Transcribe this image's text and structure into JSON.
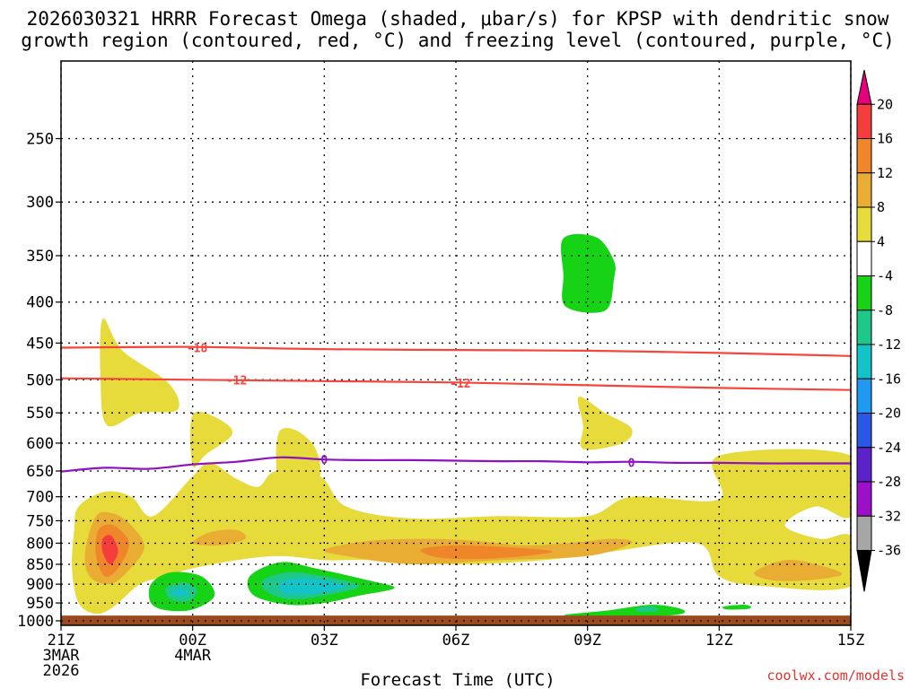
{
  "chart_data": {
    "type": "time-height cross section",
    "title_lines": [
      "2026030321 HRRR Forecast Omega (shaded, μbar/s) for KPSP with dendritic snow",
      "growth region (contoured, red, °C) and freezing level (contoured, purple, °C)"
    ],
    "xlabel": "Forecast Time (UTC)",
    "ylabel": "",
    "x_ticks": [
      {
        "hour": 0,
        "lines": [
          "21Z",
          "3MAR",
          "2026"
        ]
      },
      {
        "hour": 3,
        "lines": [
          "00Z",
          "4MAR"
        ]
      },
      {
        "hour": 6,
        "lines": [
          "03Z"
        ]
      },
      {
        "hour": 9,
        "lines": [
          "06Z"
        ]
      },
      {
        "hour": 12,
        "lines": [
          "09Z"
        ]
      },
      {
        "hour": 15,
        "lines": [
          "12Z"
        ]
      },
      {
        "hour": 18,
        "lines": [
          "15Z"
        ]
      }
    ],
    "xlim": [
      0,
      18
    ],
    "y_ticks": [
      "250",
      "300",
      "350",
      "400",
      "450",
      "500",
      "550",
      "600",
      "650",
      "700",
      "750",
      "800",
      "850",
      "900",
      "950",
      "1000"
    ],
    "ylim_hPa": [
      200,
      1013
    ],
    "yscale": "log",
    "grid": true,
    "terrain_below_hPa": 985,
    "colorbar": {
      "label_values": [
        "20",
        "16",
        "12",
        "8",
        "4",
        "-4",
        "-8",
        "-12",
        "-16",
        "-20",
        "-24",
        "-28",
        "-32",
        "-36"
      ],
      "colors": [
        "#e6007e",
        "#f63d3d",
        "#f0862a",
        "#e9ad34",
        "#e6db3b",
        "#ffffff",
        "#16d316",
        "#1ec78a",
        "#13c3c8",
        "#1e9af2",
        "#2a58e6",
        "#5a22c8",
        "#9c10c9",
        "#a6a6a6",
        "#000000"
      ]
    },
    "contours": [
      {
        "name": "dgz-minus-18",
        "label": "-18",
        "color": "#f5453d",
        "points": [
          [
            0,
            456
          ],
          [
            3,
            455
          ],
          [
            6,
            458
          ],
          [
            9,
            459
          ],
          [
            12,
            460
          ],
          [
            15,
            463
          ],
          [
            18,
            467
          ]
        ],
        "label_at": [
          3.1,
          456
        ]
      },
      {
        "name": "dgz-minus-12",
        "label": "-12",
        "color": "#f5453d",
        "points": [
          [
            0,
            498
          ],
          [
            3,
            500
          ],
          [
            6,
            502
          ],
          [
            9,
            504
          ],
          [
            12,
            508
          ],
          [
            15,
            512
          ],
          [
            18,
            515
          ]
        ],
        "label_at": [
          4.0,
          500
        ],
        "label2_at": [
          9.1,
          505
        ]
      },
      {
        "name": "freezing-level-0",
        "label": "0",
        "color": "#8e11c2",
        "points": [
          [
            0,
            651
          ],
          [
            1,
            644
          ],
          [
            2,
            646
          ],
          [
            3,
            638
          ],
          [
            4,
            633
          ],
          [
            5,
            625
          ],
          [
            6,
            629
          ],
          [
            7,
            630
          ],
          [
            8,
            630
          ],
          [
            9,
            631
          ],
          [
            10,
            632
          ],
          [
            11,
            632
          ],
          [
            12,
            634
          ],
          [
            13,
            633
          ],
          [
            14,
            635
          ],
          [
            15,
            635
          ],
          [
            16,
            636
          ],
          [
            17,
            636
          ],
          [
            18,
            636
          ]
        ],
        "label_at": [
          6.0,
          629
        ],
        "label2_at": [
          13.0,
          634
        ]
      }
    ],
    "omega_regions": [
      {
        "name": "upper-weak-ascent",
        "value_range": "4 to 8",
        "color": "#e6db3b",
        "points": [
          [
            0.95,
            420
          ],
          [
            1.4,
            460
          ],
          [
            2.45,
            505
          ],
          [
            2.65,
            545
          ],
          [
            1.8,
            550
          ],
          [
            1.05,
            570
          ],
          [
            0.9,
            500
          ]
        ]
      },
      {
        "name": "midlevel-ascent-a",
        "value_range": "4 to 8",
        "color": "#e6db3b",
        "points": [
          [
            3.0,
            553
          ],
          [
            3.6,
            560
          ],
          [
            3.9,
            585
          ],
          [
            3.3,
            620
          ],
          [
            3.0,
            640
          ]
        ]
      },
      {
        "name": "midlevel-ascent-b",
        "value_range": "4 to 8",
        "color": "#e6db3b",
        "points": [
          [
            5.0,
            578
          ],
          [
            5.4,
            580
          ],
          [
            5.8,
            610
          ],
          [
            5.9,
            660
          ],
          [
            5.5,
            680
          ],
          [
            5.0,
            670
          ],
          [
            4.9,
            620
          ]
        ]
      },
      {
        "name": "midlevel-ascent-c",
        "value_range": "4 to 8",
        "color": "#e6db3b",
        "points": [
          [
            11.8,
            525
          ],
          [
            12.4,
            550
          ],
          [
            13.0,
            575
          ],
          [
            12.8,
            600
          ],
          [
            11.9,
            610
          ],
          [
            11.9,
            570
          ]
        ]
      },
      {
        "name": "low-level-ascent-band",
        "value_range": "4 to 8",
        "color": "#e6db3b",
        "points": [
          [
            0.4,
            720
          ],
          [
            1.0,
            690
          ],
          [
            1.6,
            700
          ],
          [
            2.1,
            740
          ],
          [
            3.0,
            660
          ],
          [
            3.4,
            635
          ],
          [
            4.0,
            665
          ],
          [
            4.5,
            680
          ],
          [
            4.9,
            650
          ],
          [
            5.9,
            660
          ],
          [
            6.5,
            720
          ],
          [
            8.0,
            745
          ],
          [
            10.0,
            740
          ],
          [
            12.0,
            740
          ],
          [
            13.0,
            700
          ],
          [
            15.0,
            705
          ],
          [
            15.0,
            622
          ],
          [
            18.0,
            622
          ],
          [
            18.0,
            740
          ],
          [
            17.2,
            720
          ],
          [
            16.5,
            760
          ],
          [
            17.3,
            790
          ],
          [
            18.0,
            785
          ],
          [
            18.0,
            905
          ],
          [
            16.0,
            905
          ],
          [
            15.0,
            880
          ],
          [
            14.5,
            800
          ],
          [
            12.5,
            820
          ],
          [
            11.0,
            840
          ],
          [
            9.0,
            850
          ],
          [
            7.0,
            840
          ],
          [
            6.0,
            840
          ],
          [
            5.0,
            830
          ],
          [
            4.0,
            840
          ],
          [
            3.0,
            860
          ],
          [
            2.4,
            880
          ],
          [
            1.8,
            900
          ],
          [
            1.2,
            960
          ],
          [
            0.8,
            980
          ],
          [
            0.4,
            950
          ],
          [
            0.25,
            860
          ],
          [
            0.3,
            770
          ]
        ]
      },
      {
        "name": "low-level-moderate-ascent-west",
        "value_range": "8 to 12",
        "color": "#e9ad34",
        "points": [
          [
            0.8,
            740
          ],
          [
            1.2,
            735
          ],
          [
            1.6,
            760
          ],
          [
            1.9,
            810
          ],
          [
            1.5,
            870
          ],
          [
            1.1,
            900
          ],
          [
            0.65,
            880
          ],
          [
            0.55,
            820
          ]
        ]
      },
      {
        "name": "low-level-moderate-ascent-patch",
        "value_range": "8 to 12",
        "color": "#e9ad34",
        "points": [
          [
            3.0,
            800
          ],
          [
            3.4,
            775
          ],
          [
            4.0,
            770
          ],
          [
            4.2,
            790
          ],
          [
            3.6,
            805
          ]
        ]
      },
      {
        "name": "low-level-moderate-ascent-central",
        "value_range": "8 to 12",
        "color": "#e9ad34",
        "points": [
          [
            6.0,
            815
          ],
          [
            7.0,
            795
          ],
          [
            8.3,
            790
          ],
          [
            9.5,
            795
          ],
          [
            10.5,
            805
          ],
          [
            11.5,
            800
          ],
          [
            12.6,
            790
          ],
          [
            13.0,
            800
          ],
          [
            12.0,
            830
          ],
          [
            10.0,
            840
          ],
          [
            8.0,
            850
          ],
          [
            6.5,
            830
          ]
        ]
      },
      {
        "name": "low-level-moderate-ascent-east",
        "value_range": "8 to 12",
        "color": "#e9ad34",
        "points": [
          [
            15.8,
            870
          ],
          [
            16.5,
            840
          ],
          [
            17.2,
            850
          ],
          [
            17.8,
            875
          ],
          [
            17.0,
            890
          ],
          [
            16.2,
            890
          ]
        ]
      },
      {
        "name": "low-level-strong-ascent",
        "value_range": "12 to 16",
        "color": "#f0862a",
        "points": [
          [
            0.85,
            770
          ],
          [
            1.2,
            760
          ],
          [
            1.55,
            800
          ],
          [
            1.3,
            860
          ],
          [
            1.0,
            880
          ],
          [
            0.8,
            830
          ]
        ]
      },
      {
        "name": "low-level-strong-ascent-central",
        "value_range": "12 to 16",
        "color": "#f0862a",
        "points": [
          [
            8.2,
            815
          ],
          [
            9.0,
            805
          ],
          [
            10.3,
            810
          ],
          [
            11.2,
            820
          ],
          [
            10.0,
            835
          ],
          [
            8.7,
            835
          ]
        ]
      },
      {
        "name": "low-level-max-ascent",
        "value_range": "16 to 20",
        "color": "#f63d3d",
        "points": [
          [
            0.95,
            790
          ],
          [
            1.15,
            783
          ],
          [
            1.3,
            820
          ],
          [
            1.12,
            850
          ],
          [
            0.95,
            820
          ]
        ]
      },
      {
        "name": "upper-descent",
        "value_range": "-4 to -8",
        "color": "#16d316",
        "points": [
          [
            11.45,
            333
          ],
          [
            12.2,
            332
          ],
          [
            12.6,
            355
          ],
          [
            12.6,
            375
          ],
          [
            12.4,
            410
          ],
          [
            11.5,
            405
          ],
          [
            11.45,
            370
          ]
        ]
      },
      {
        "name": "low-level-descent-west",
        "value_range": "-4 to -8",
        "color": "#16d316",
        "points": [
          [
            2.05,
            900
          ],
          [
            2.5,
            870
          ],
          [
            3.2,
            880
          ],
          [
            3.5,
            930
          ],
          [
            3.0,
            968
          ],
          [
            2.4,
            970
          ],
          [
            2.05,
            950
          ]
        ]
      },
      {
        "name": "low-level-descent-central",
        "value_range": "-4 to -8",
        "color": "#16d316",
        "points": [
          [
            4.3,
            880
          ],
          [
            5.0,
            845
          ],
          [
            5.8,
            860
          ],
          [
            7.0,
            890
          ],
          [
            7.6,
            910
          ],
          [
            6.8,
            930
          ],
          [
            6.0,
            950
          ],
          [
            5.2,
            955
          ],
          [
            4.4,
            930
          ]
        ]
      },
      {
        "name": "low-level-descent-south",
        "value_range": "-4 to -8",
        "color": "#16d316",
        "points": [
          [
            11.5,
            985
          ],
          [
            12.5,
            970
          ],
          [
            13.5,
            955
          ],
          [
            14.2,
            970
          ],
          [
            13.8,
            985
          ]
        ]
      },
      {
        "name": "low-level-descent-small",
        "value_range": "-4 to -8",
        "color": "#16d316",
        "points": [
          [
            15.1,
            960
          ],
          [
            15.6,
            955
          ],
          [
            15.7,
            965
          ],
          [
            15.2,
            968
          ]
        ]
      },
      {
        "name": "low-level-descent-west-core",
        "value_range": "-8 to -12",
        "color": "#1ec78a",
        "points": [
          [
            2.4,
            910
          ],
          [
            2.8,
            895
          ],
          [
            3.1,
            915
          ],
          [
            2.9,
            945
          ],
          [
            2.5,
            940
          ]
        ]
      },
      {
        "name": "low-level-descent-central-core",
        "value_range": "-8 to -12",
        "color": "#1ec78a",
        "points": [
          [
            4.6,
            890
          ],
          [
            5.2,
            870
          ],
          [
            6.0,
            880
          ],
          [
            6.8,
            905
          ],
          [
            6.0,
            930
          ],
          [
            5.2,
            940
          ],
          [
            4.7,
            920
          ]
        ]
      },
      {
        "name": "low-level-descent-south-core",
        "value_range": "-8 to -12",
        "color": "#1ec78a",
        "points": [
          [
            13.1,
            965
          ],
          [
            13.5,
            960
          ],
          [
            13.6,
            972
          ],
          [
            13.2,
            975
          ]
        ]
      },
      {
        "name": "low-level-descent-central-max",
        "value_range": "-12 to -16",
        "color": "#13c3c8",
        "points": [
          [
            5.0,
            895
          ],
          [
            5.6,
            885
          ],
          [
            6.5,
            905
          ],
          [
            5.8,
            925
          ],
          [
            5.1,
            925
          ]
        ]
      },
      {
        "name": "low-level-descent-west-max",
        "value_range": "-12 to -16",
        "color": "#13c3c8",
        "points": [
          [
            2.55,
            915
          ],
          [
            2.8,
            910
          ],
          [
            2.9,
            928
          ],
          [
            2.6,
            930
          ]
        ]
      }
    ]
  },
  "credit": "coolwx.com/models"
}
